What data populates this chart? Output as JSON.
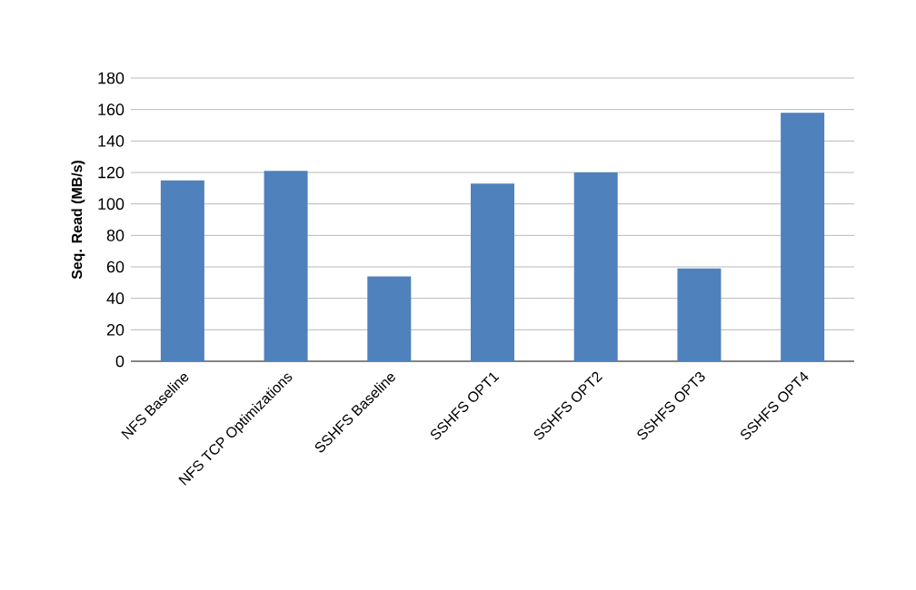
{
  "chart_data": {
    "type": "bar",
    "ylabel": "Seq. Read (MB/s)",
    "categories": [
      "NFS Baseline",
      "NFS TCP Optimizations",
      "SSHFS Baseline",
      "SSHFS OPT1",
      "SSHFS OPT2",
      "SSHFS OPT3",
      "SSHFS OPT4"
    ],
    "values": [
      115,
      121,
      54,
      113,
      120,
      59,
      158
    ],
    "color": "#4f81bd",
    "ylim": [
      0,
      180
    ],
    "yticks": [
      0,
      20,
      40,
      60,
      80,
      100,
      120,
      140,
      160,
      180
    ],
    "grid": "y"
  }
}
